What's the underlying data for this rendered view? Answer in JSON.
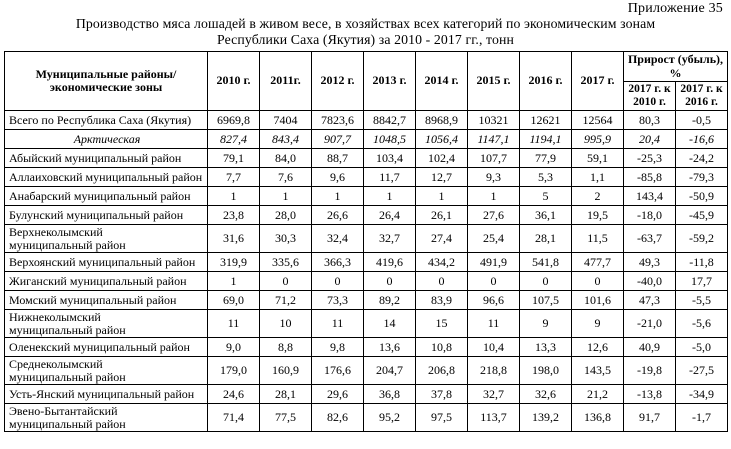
{
  "page": {
    "appendix_label": "Приложение 35",
    "title": {
      "line1": "Производство мяса лошадей в живом весе, в хозяйствах всех категорий по экономическим зонам",
      "line2": "Республики Саха (Якутия) за 2010 - 2017 гг., тонн"
    }
  },
  "table": {
    "col1_header_line1": "Муниципальные районы/",
    "col1_header_line2": "экономические зоны",
    "year_headers": [
      "2010 г.",
      "2011г.",
      "2012 г.",
      "2013 г.",
      "2014 г.",
      "2015 г.",
      "2016 г.",
      "2017 г."
    ],
    "growth_header": "Прирост (убыль), %",
    "growth_subheaders": [
      "2017 г. к 2010 г.",
      "2017 г. к 2016 г."
    ],
    "rows": [
      {
        "kind": "total",
        "name": "Всего по Республика Саха (Якутия)",
        "values": [
          "6969,8",
          "7404",
          "7823,6",
          "8842,7",
          "8968,9",
          "10321",
          "12621",
          "12564"
        ],
        "growth": [
          "80,3",
          "-0,5"
        ]
      },
      {
        "kind": "zone",
        "name": "Арктическая",
        "values": [
          "827,4",
          "843,4",
          "907,7",
          "1048,5",
          "1056,4",
          "1147,1",
          "1194,1",
          "995,9"
        ],
        "growth": [
          "20,4",
          "-16,6"
        ]
      },
      {
        "kind": "district",
        "name": "Абыйский муниципальный район",
        "values": [
          "79,1",
          "84,0",
          "88,7",
          "103,4",
          "102,4",
          "107,7",
          "77,9",
          "59,1"
        ],
        "growth": [
          "-25,3",
          "-24,2"
        ]
      },
      {
        "kind": "district",
        "name": "Аллаиховский муниципальный район",
        "values": [
          "7,7",
          "7,6",
          "9,6",
          "11,7",
          "12,7",
          "9,3",
          "5,3",
          "1,1"
        ],
        "growth": [
          "-85,8",
          "-79,3"
        ]
      },
      {
        "kind": "district",
        "name": "Анабарский муниципальный район",
        "values": [
          "1",
          "1",
          "1",
          "1",
          "1",
          "1",
          "5",
          "2"
        ],
        "growth": [
          "143,4",
          "-50,9"
        ]
      },
      {
        "kind": "district",
        "name": "Булунский муниципальный район",
        "values": [
          "23,8",
          "28,0",
          "26,6",
          "26,4",
          "26,1",
          "27,6",
          "36,1",
          "19,5"
        ],
        "growth": [
          "-18,0",
          "-45,9"
        ]
      },
      {
        "kind": "district",
        "name": "Верхнеколымский муниципальный район",
        "values": [
          "31,6",
          "30,3",
          "32,4",
          "32,7",
          "27,4",
          "25,4",
          "28,1",
          "11,5"
        ],
        "growth": [
          "-63,7",
          "-59,2"
        ]
      },
      {
        "kind": "district",
        "name": "Верхоянский муниципальный район",
        "values": [
          "319,9",
          "335,6",
          "366,3",
          "419,6",
          "434,2",
          "491,9",
          "541,8",
          "477,7"
        ],
        "growth": [
          "49,3",
          "-11,8"
        ]
      },
      {
        "kind": "district",
        "name": "Жиганский муниципальный район",
        "values": [
          "1",
          "0",
          "0",
          "0",
          "0",
          "0",
          "0",
          "0"
        ],
        "growth": [
          "-40,0",
          "17,7"
        ]
      },
      {
        "kind": "district",
        "name": "Момский муниципальный район",
        "values": [
          "69,0",
          "71,2",
          "73,3",
          "89,2",
          "83,9",
          "96,6",
          "107,5",
          "101,6"
        ],
        "growth": [
          "47,3",
          "-5,5"
        ]
      },
      {
        "kind": "district",
        "name": "Нижнеколымский муниципальный район",
        "values": [
          "11",
          "10",
          "11",
          "14",
          "15",
          "11",
          "9",
          "9"
        ],
        "growth": [
          "-21,0",
          "-5,6"
        ]
      },
      {
        "kind": "district",
        "name": "Оленекский муниципальный район",
        "values": [
          "9,0",
          "8,8",
          "9,8",
          "13,6",
          "10,8",
          "10,4",
          "13,3",
          "12,6"
        ],
        "growth": [
          "40,9",
          "-5,0"
        ]
      },
      {
        "kind": "district",
        "name": "Среднеколымский муниципальный район",
        "values": [
          "179,0",
          "160,9",
          "176,6",
          "204,7",
          "206,8",
          "218,8",
          "198,0",
          "143,5"
        ],
        "growth": [
          "-19,8",
          "-27,5"
        ]
      },
      {
        "kind": "district",
        "name": "Усть-Янский муниципальный район",
        "values": [
          "24,6",
          "28,1",
          "29,6",
          "36,8",
          "37,8",
          "32,7",
          "32,6",
          "21,2"
        ],
        "growth": [
          "-13,8",
          "-34,9"
        ]
      },
      {
        "kind": "district",
        "name": "Эвено-Бытантайский муниципальный район",
        "values": [
          "71,4",
          "77,5",
          "82,6",
          "95,2",
          "97,5",
          "113,7",
          "139,2",
          "136,8"
        ],
        "growth": [
          "91,7",
          "-1,7"
        ]
      }
    ]
  }
}
